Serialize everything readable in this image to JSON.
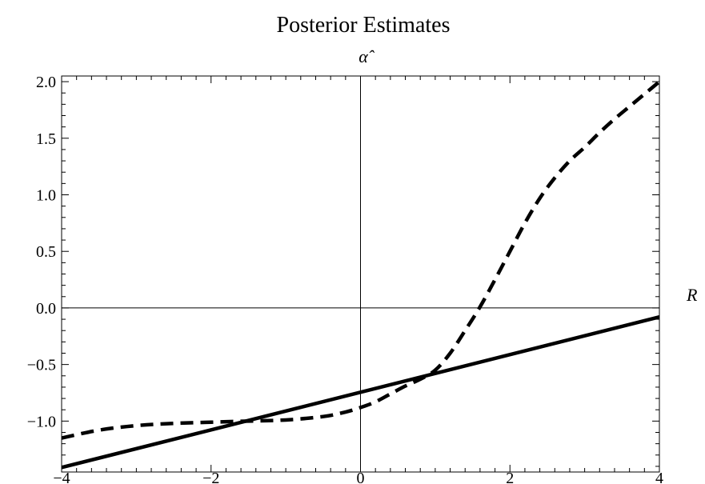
{
  "chart_data": {
    "type": "line",
    "title": "Posterior Estimates",
    "xlabel": "R",
    "ylabel": "α̂",
    "xlim": [
      -4,
      4
    ],
    "ylim": [
      -1.45,
      2.05
    ],
    "grid": false,
    "x_ticks": [
      {
        "value": -4,
        "label": "−4"
      },
      {
        "value": -2,
        "label": "−2"
      },
      {
        "value": 0,
        "label": "0"
      },
      {
        "value": 2,
        "label": "2"
      },
      {
        "value": 4,
        "label": "4"
      }
    ],
    "y_ticks": [
      {
        "value": -1.0,
        "label": "−1.0"
      },
      {
        "value": -0.5,
        "label": "−0.5"
      },
      {
        "value": 0.0,
        "label": "0.0"
      },
      {
        "value": 0.5,
        "label": "0.5"
      },
      {
        "value": 1.0,
        "label": "1.0"
      },
      {
        "value": 1.5,
        "label": "1.5"
      },
      {
        "value": 2.0,
        "label": "2.0"
      }
    ],
    "series": [
      {
        "style": "solid",
        "x": [
          -4,
          4
        ],
        "y": [
          -1.41,
          -0.08
        ]
      },
      {
        "style": "dashed",
        "x": [
          -4,
          -3.5,
          -3,
          -2.5,
          -2,
          -1.5,
          -1,
          -0.5,
          -0.2,
          0,
          0.2,
          0.4,
          0.6,
          0.8,
          1.0,
          1.2,
          1.4,
          1.6,
          1.8,
          2.0,
          2.2,
          2.4,
          2.6,
          2.8,
          3.0,
          3.2,
          3.4,
          3.6,
          3.8,
          4.0
        ],
        "y": [
          -1.15,
          -1.08,
          -1.04,
          -1.02,
          -1.01,
          -1.0,
          -0.99,
          -0.96,
          -0.92,
          -0.88,
          -0.83,
          -0.76,
          -0.69,
          -0.63,
          -0.55,
          -0.4,
          -0.2,
          0.01,
          0.25,
          0.5,
          0.75,
          0.97,
          1.15,
          1.3,
          1.42,
          1.55,
          1.67,
          1.78,
          1.89,
          2.0
        ]
      }
    ]
  }
}
